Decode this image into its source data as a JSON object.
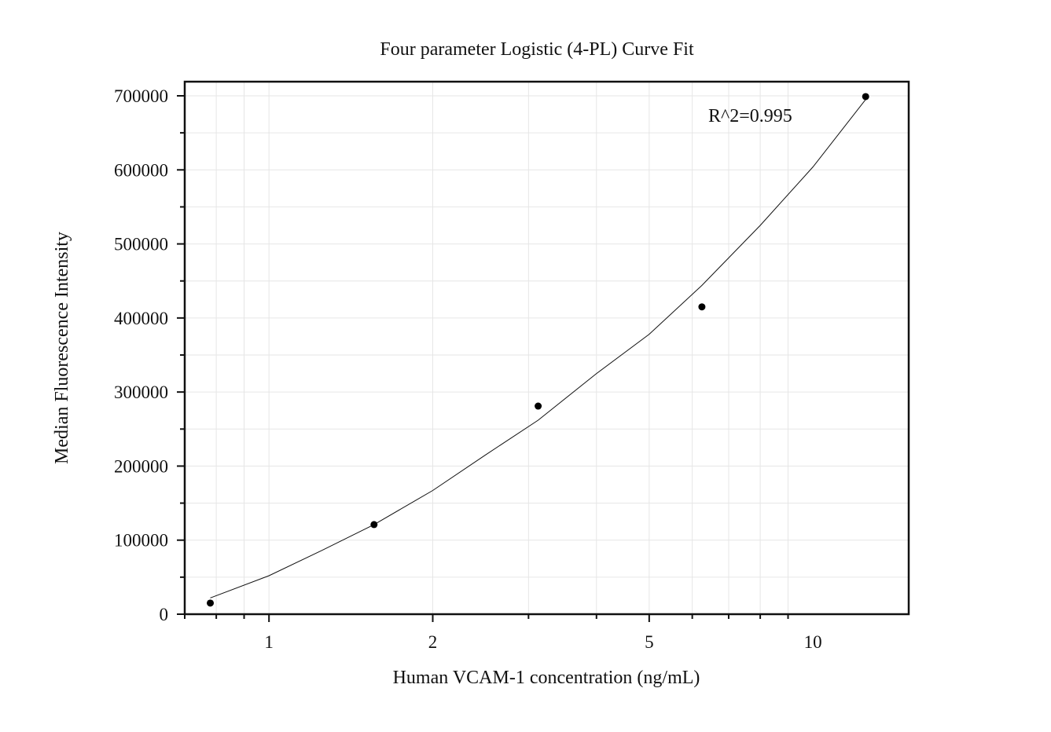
{
  "chart_data": {
    "type": "scatter",
    "title": "Four parameter Logistic (4-PL) Curve Fit",
    "xlabel": "Human VCAM-1 concentration (ng/mL)",
    "ylabel": "Median Fluorescence Intensity",
    "x_scale": "log",
    "xlim": [
      0.7,
      15
    ],
    "ylim": [
      0,
      700000
    ],
    "x_ticks": [
      1,
      2,
      5,
      10
    ],
    "x_tick_labels": [
      "1",
      "2",
      "5",
      "10"
    ],
    "y_ticks": [
      0,
      100000,
      200000,
      300000,
      400000,
      500000,
      600000,
      700000
    ],
    "y_tick_labels": [
      "0",
      "100000",
      "200000",
      "300000",
      "400000",
      "500000",
      "600000",
      "700000"
    ],
    "grid": true,
    "points": {
      "x": [
        0.78,
        1.56,
        3.125,
        6.25,
        12.5
      ],
      "y": [
        15000,
        121000,
        281000,
        415000,
        699000
      ]
    },
    "fit": {
      "type": "line",
      "x": [
        0.78,
        1.0,
        1.25,
        1.56,
        2.0,
        2.5,
        3.125,
        4.0,
        5.0,
        6.25,
        8.0,
        10.0,
        12.5
      ],
      "y": [
        22000,
        52000,
        86000,
        121000,
        167000,
        215000,
        262000,
        325000,
        378000,
        444000,
        525000,
        604000,
        695000
      ]
    },
    "annotation": "R^2=0.995",
    "annotation_position": "top-right"
  },
  "colors": {
    "points": "#000000",
    "curve": "#111111",
    "frame": "#111111",
    "grid": "#e6e6e6"
  }
}
